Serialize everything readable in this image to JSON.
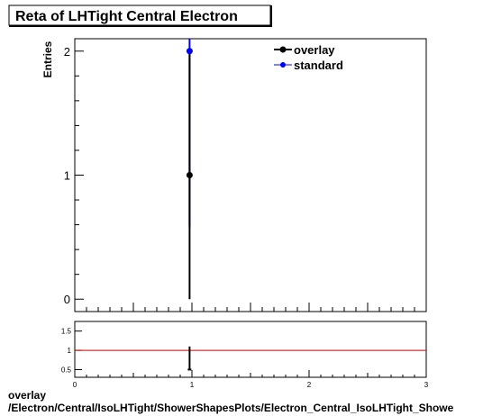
{
  "chart_data": {
    "title": "Reta of LHTight Central  Electron",
    "main": {
      "type": "scatter",
      "ylabel": "Entries",
      "xlim": [
        0,
        3
      ],
      "ylim": [
        -0.1,
        2.1
      ],
      "yticks": [
        0,
        1,
        2
      ],
      "series": [
        {
          "name": "overlay",
          "color": "#000000",
          "points": [
            {
              "x": 0.98,
              "y": 1,
              "yerr": 1
            }
          ]
        },
        {
          "name": "standard",
          "color": "#0000ff",
          "points": [
            {
              "x": 0.98,
              "y": 2,
              "yerr": 1.414
            }
          ]
        }
      ],
      "legend": "top-right"
    },
    "ratio": {
      "type": "line",
      "xlim": [
        0,
        3
      ],
      "ylim": [
        0.3,
        1.75
      ],
      "yticks": [
        0.5,
        1,
        1.5
      ],
      "ytick_labels": [
        "0.5",
        "1",
        "1.5"
      ],
      "xticks": [
        0,
        1,
        2,
        3
      ],
      "reference_line": 1,
      "reference_color": "#cc0000",
      "points": [
        {
          "x": 0.98,
          "y": 0.5,
          "yerr": 0.6
        }
      ]
    }
  },
  "footer": {
    "line1": "overlay",
    "line2": "/Electron/Central/IsoLHTight/ShowerShapesPlots/Electron_Central_IsoLHTight_Showe"
  }
}
